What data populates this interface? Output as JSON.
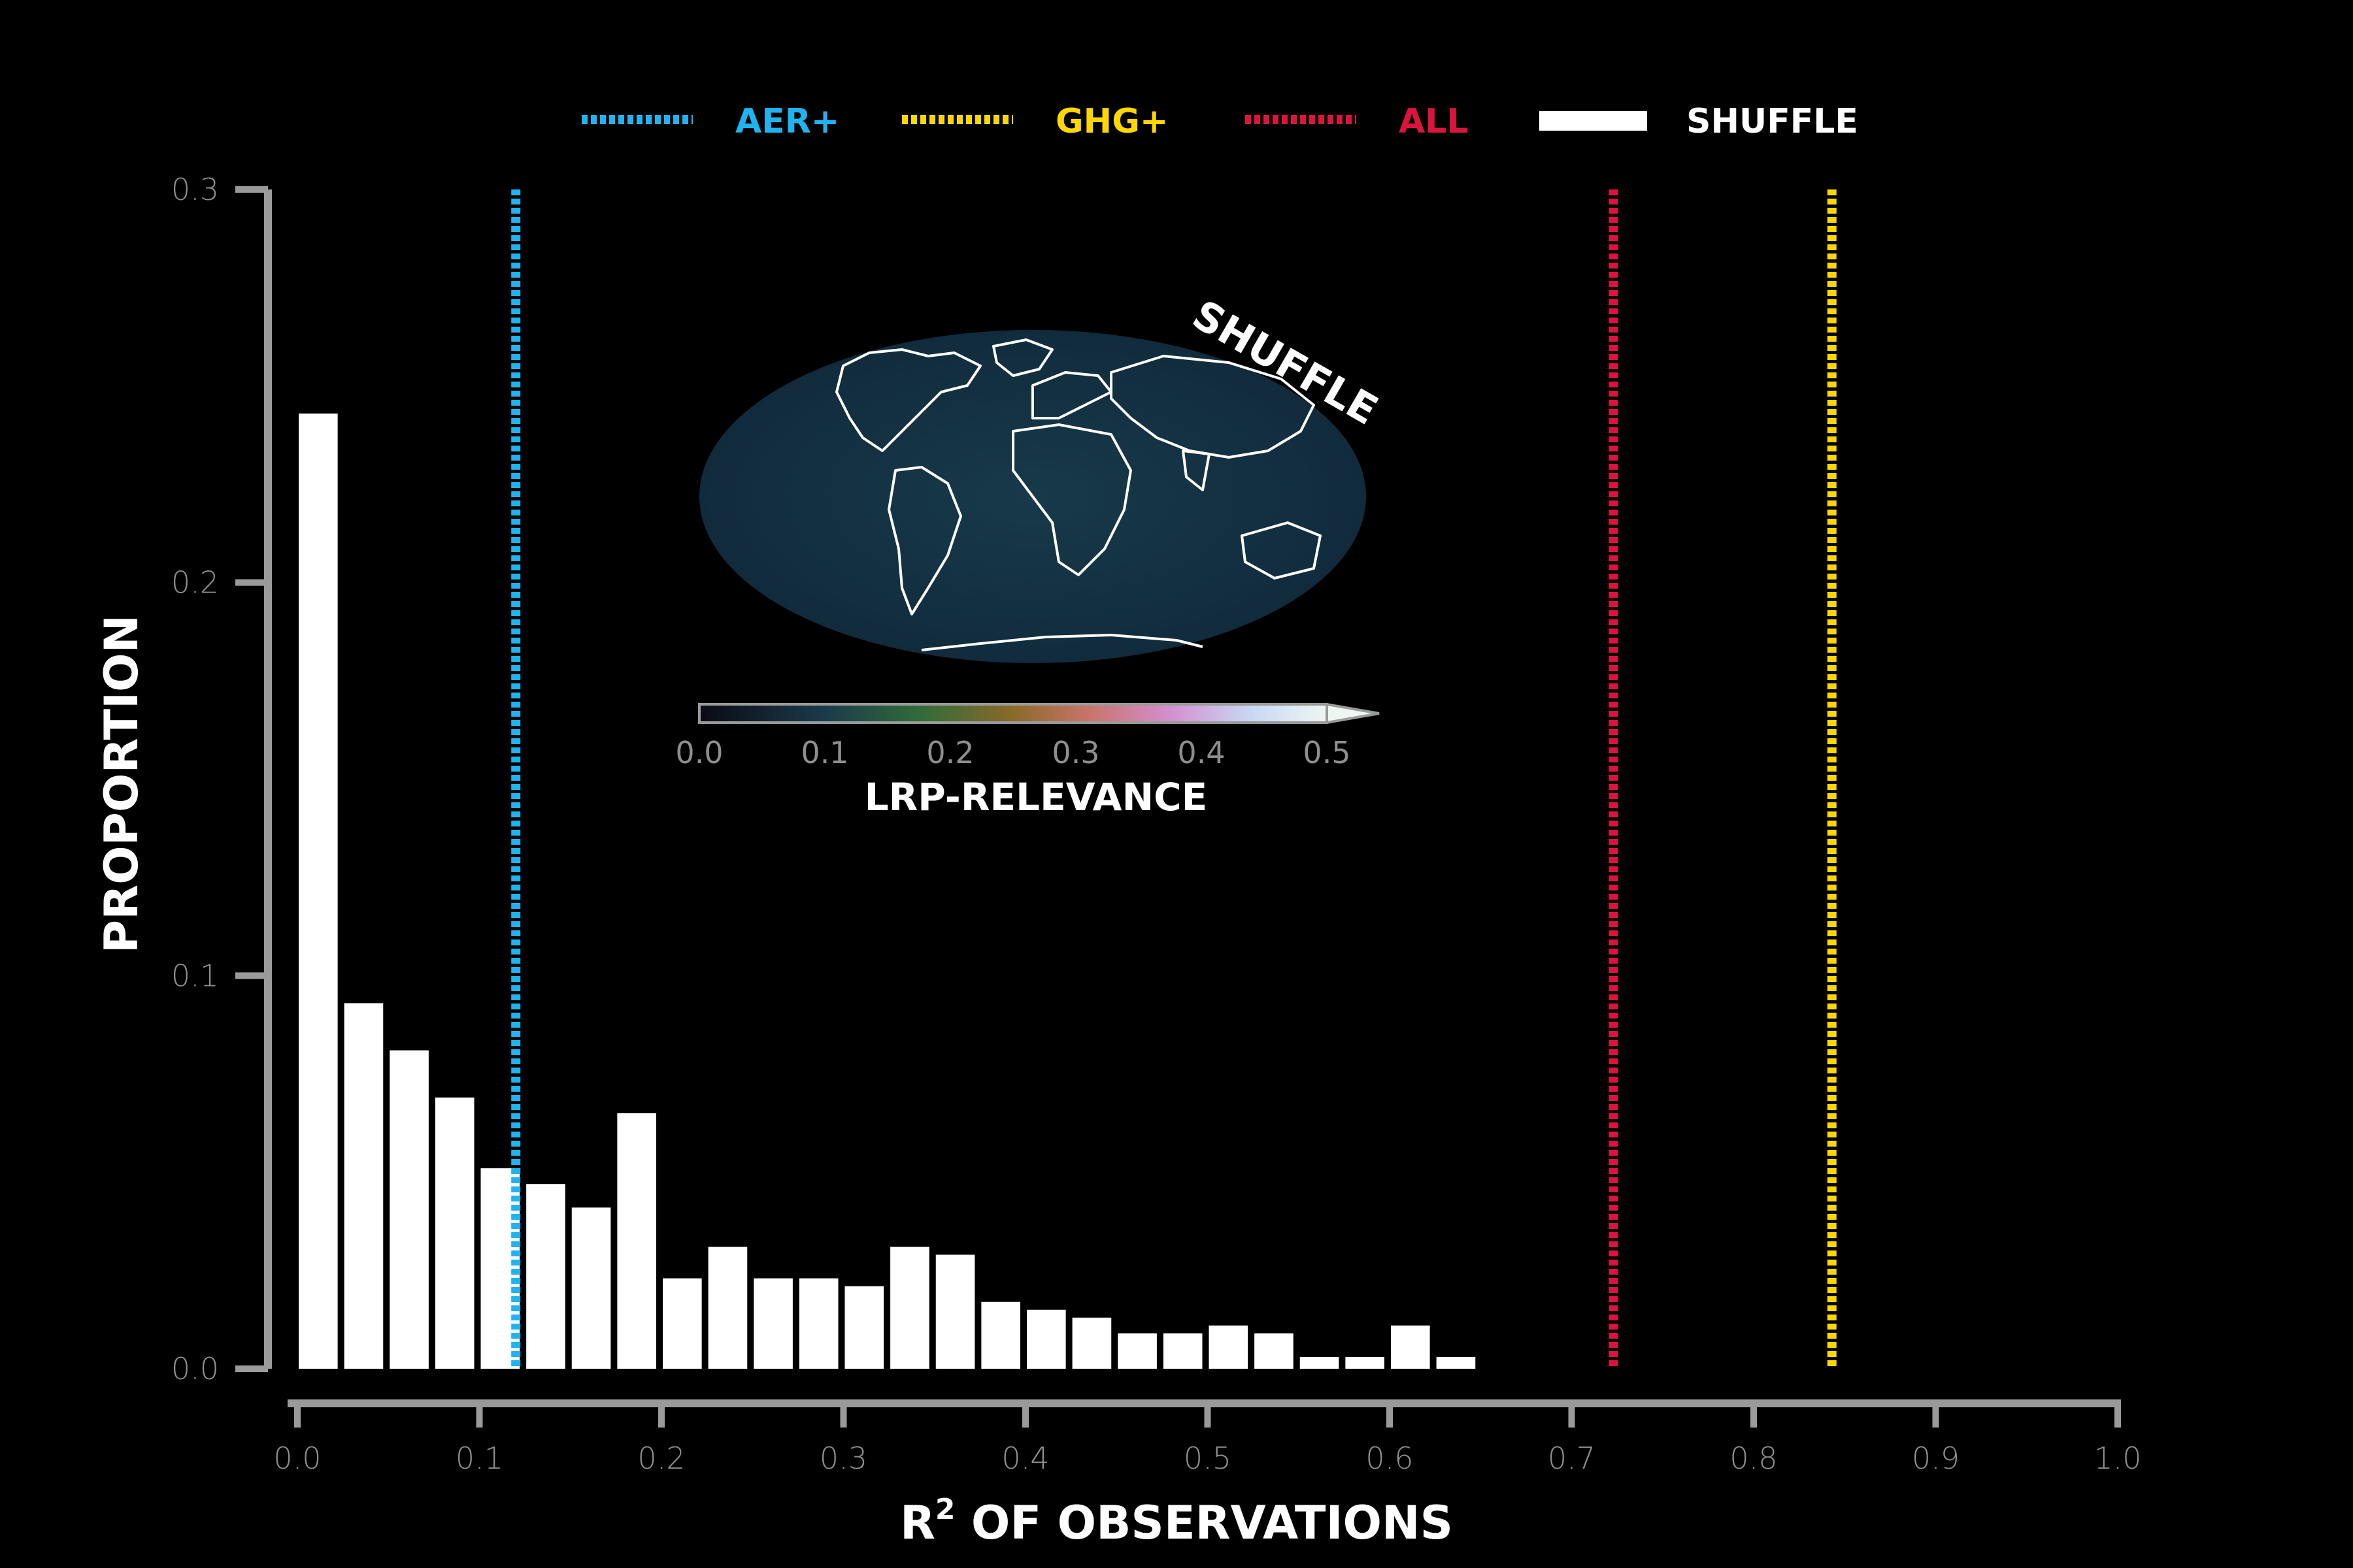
{
  "chart_data": {
    "type": "bar",
    "xlabel": "R",
    "xlabel_superscript": "2",
    "xlabel_suffix": " OF OBSERVATIONS",
    "ylabel": "PROPORTION",
    "xlim": [
      0.0,
      1.0
    ],
    "ylim": [
      0.0,
      0.3
    ],
    "xticks": [
      "0.0",
      "0.1",
      "0.2",
      "0.3",
      "0.4",
      "0.5",
      "0.6",
      "0.7",
      "0.8",
      "0.9",
      "1.0"
    ],
    "yticks": [
      "0.0",
      "0.1",
      "0.2",
      "0.3"
    ],
    "grid": false,
    "legend_position": "top",
    "bin_width": 0.025,
    "series": [
      {
        "name": "SHUFFLE",
        "color": "#ffffff",
        "bin_starts": [
          0.0,
          0.025,
          0.05,
          0.075,
          0.1,
          0.125,
          0.15,
          0.175,
          0.2,
          0.225,
          0.25,
          0.275,
          0.3,
          0.325,
          0.35,
          0.375,
          0.4,
          0.425,
          0.45,
          0.475,
          0.5,
          0.525,
          0.55,
          0.575,
          0.6,
          0.625
        ],
        "values": [
          0.243,
          0.093,
          0.081,
          0.069,
          0.051,
          0.047,
          0.041,
          0.065,
          0.023,
          0.031,
          0.023,
          0.023,
          0.021,
          0.031,
          0.029,
          0.017,
          0.015,
          0.013,
          0.009,
          0.009,
          0.011,
          0.009,
          0.003,
          0.003,
          0.011,
          0.003
        ]
      }
    ],
    "reference_lines": [
      {
        "name": "AER+",
        "x": 0.12,
        "color": "#1eb4f0"
      },
      {
        "name": "ALL",
        "x": 0.723,
        "color": "#dc143c"
      },
      {
        "name": "GHG+",
        "x": 0.843,
        "color": "#ffd700"
      }
    ],
    "legend": [
      {
        "label": "AER+",
        "color": "#1eb4f0",
        "style": "dashed"
      },
      {
        "label": "GHG+",
        "color": "#ffd700",
        "style": "dashed"
      },
      {
        "label": "ALL",
        "color": "#dc143c",
        "style": "dashed"
      },
      {
        "label": "SHUFFLE",
        "color": "#ffffff",
        "style": "solid"
      }
    ],
    "inset": {
      "map_title": "SHUFFLE",
      "colorbar_label": "LRP-RELEVANCE",
      "colorbar_ticks": [
        "0.0",
        "0.1",
        "0.2",
        "0.3",
        "0.4",
        "0.5"
      ],
      "colorbar_range": [
        0.0,
        0.5
      ]
    }
  }
}
